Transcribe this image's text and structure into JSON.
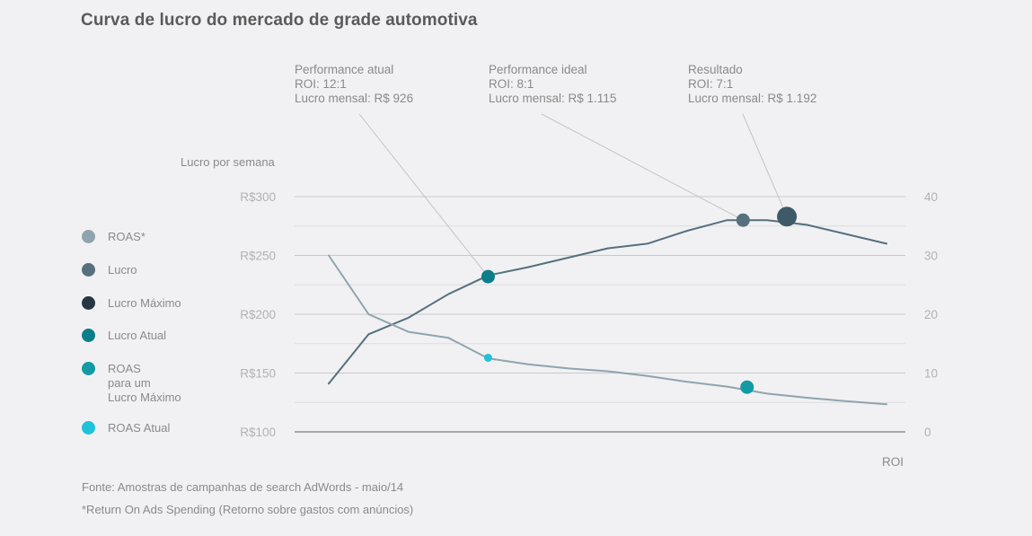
{
  "title": "Curva de lucro do mercado de grade automotiva",
  "callouts": [
    {
      "lines": [
        "Performance atual",
        "ROI: 12:1",
        "Lucro mensal: R$ 926"
      ]
    },
    {
      "lines": [
        "Performance ideal",
        "ROI: 8:1",
        "Lucro mensal: R$ 1.115"
      ]
    },
    {
      "lines": [
        "Resultado",
        "ROI: 7:1",
        "Lucro mensal: R$ 1.192"
      ]
    }
  ],
  "legend": [
    {
      "label": "ROAS*",
      "color": "#8fa4ae"
    },
    {
      "label": "Lucro",
      "color": "#56707d"
    },
    {
      "label": "Lucro Máximo",
      "color": "#263743"
    },
    {
      "label": "Lucro Atual",
      "color": "#0c7e8a"
    },
    {
      "label": "ROAS\npara um\nLucro Máximo",
      "color": "#139aa5"
    },
    {
      "label": "ROAS Atual",
      "color": "#1fc2d8"
    }
  ],
  "footer": {
    "source": "Fonte: Amostras de campanhas de search AdWords - maio/14",
    "note": "*Return On Ads Spending (Retorno sobre gastos com anúncios)"
  },
  "chart_data": {
    "type": "line",
    "title": "Curva de lucro do mercado de grade automotiva",
    "ylabel": "Lucro por semana",
    "xlabel": "ROI",
    "ylim": [
      100,
      300
    ],
    "ylim_right": [
      0,
      40
    ],
    "y_ticks": [
      "R$100",
      "R$150",
      "R$200",
      "R$250",
      "R$300"
    ],
    "y_ticks_right": [
      "0",
      "10",
      "20",
      "30",
      "40"
    ],
    "x": [
      0,
      1,
      2,
      3,
      4,
      5,
      6,
      7,
      8,
      9,
      10,
      11,
      12,
      13,
      14
    ],
    "series": [
      {
        "name": "Lucro",
        "axis": "left",
        "color": "#56707d",
        "values": [
          141,
          183,
          197,
          217,
          233,
          240,
          248,
          256,
          260,
          271,
          280,
          280,
          276,
          268,
          260
        ]
      },
      {
        "name": "ROAS*",
        "axis": "right",
        "color": "#8fa4ae",
        "values": [
          30,
          20,
          17,
          16,
          12.5,
          11.5,
          10.8,
          10.3,
          9.5,
          8.5,
          7.7,
          6.5,
          5.8,
          5.2,
          4.7
        ]
      }
    ],
    "markers": [
      {
        "name": "Lucro Atual",
        "series": "Lucro",
        "x": 4,
        "y": 232,
        "color": "#0c7e8a"
      },
      {
        "name": "Lucro Máximo",
        "series": "Lucro",
        "x": 10.4,
        "y": 280,
        "color": "#56707d"
      },
      {
        "name": "Resultado",
        "series": "Lucro",
        "x": 11.5,
        "y": 283,
        "color": "#3f5a67"
      },
      {
        "name": "ROAS Atual",
        "series": "ROAS*",
        "x": 4,
        "y": 12.6,
        "color": "#1fc2d8"
      },
      {
        "name": "ROAS para um Lucro Máximo",
        "series": "ROAS*",
        "x": 10.5,
        "y": 7.6,
        "color": "#139aa5"
      }
    ]
  }
}
